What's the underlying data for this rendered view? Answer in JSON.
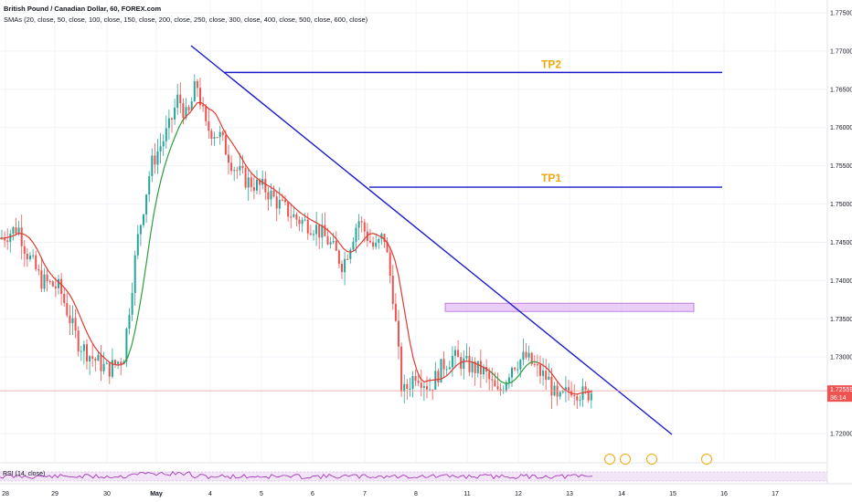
{
  "legend": {
    "title": "British Pound / Canadian Dollar, 60, FOREX.com",
    "smas": "SMAs (20, close, 50, close, 100, close, 150, close, 200, close, 250, close, 300, close, 400, close, 500, close, 600, close)"
  },
  "rsi": {
    "label": "RSI (14, close)"
  },
  "price_axis": {
    "ticks": [
      "1.77500",
      "1.77000",
      "1.76500",
      "1.76000",
      "1.75500",
      "1.75000",
      "1.74500",
      "1.74000",
      "1.73500",
      "1.73000",
      "1.72000"
    ],
    "current_price": "1.72559",
    "countdown": "36:14"
  },
  "time_axis": {
    "ticks": [
      "28",
      "29",
      "30",
      "May",
      "4",
      "5",
      "6",
      "7",
      "8",
      "11",
      "12",
      "13",
      "14",
      "15",
      "16",
      "17"
    ]
  },
  "annotations": {
    "tp1": "TP1",
    "tp2": "TP2"
  },
  "colors": {
    "trendline": "#1a1acc",
    "target_line": "#1a1acc",
    "tp_label": "#f2a60d",
    "sma_short": "#e03a2f",
    "sma_long": "#2e9e3a",
    "up_candle": "#26a69a",
    "down_candle": "#ef5350",
    "resistance_zone": "#d9a6f2",
    "rsi_line": "#9c27b0",
    "rsi_band": "#f3e5f8",
    "current_price_line": "#ef9a9a",
    "current_price_bg": "#ef5350"
  },
  "event_badges": [
    "event-flag-icon",
    "event-flag-icon",
    "event-flag-icon",
    "event-flag-icon"
  ],
  "chart_data": {
    "type": "line",
    "title": "British Pound / Canadian Dollar, 60, FOREX.com",
    "xlabel": "",
    "ylabel": "",
    "ylim": [
      1.718,
      1.778
    ],
    "x": [
      "28",
      "29",
      "30",
      "May",
      "4",
      "5",
      "6",
      "7",
      "8",
      "11",
      "12",
      "13"
    ],
    "series": [
      {
        "values": [
          1.7455,
          1.7415,
          1.7283,
          1.7595,
          1.762,
          1.754,
          1.748,
          1.747,
          1.728,
          1.7285,
          1.7285,
          1.7255
        ]
      }
    ],
    "current_price": 1.72559,
    "annotations": [
      {
        "label": "TP2",
        "price": 1.7672
      },
      {
        "label": "TP1",
        "price": 1.7522
      }
    ],
    "resistance_zone": [
      1.7362,
      1.7368
    ],
    "grid": true,
    "legend": "top-left"
  }
}
